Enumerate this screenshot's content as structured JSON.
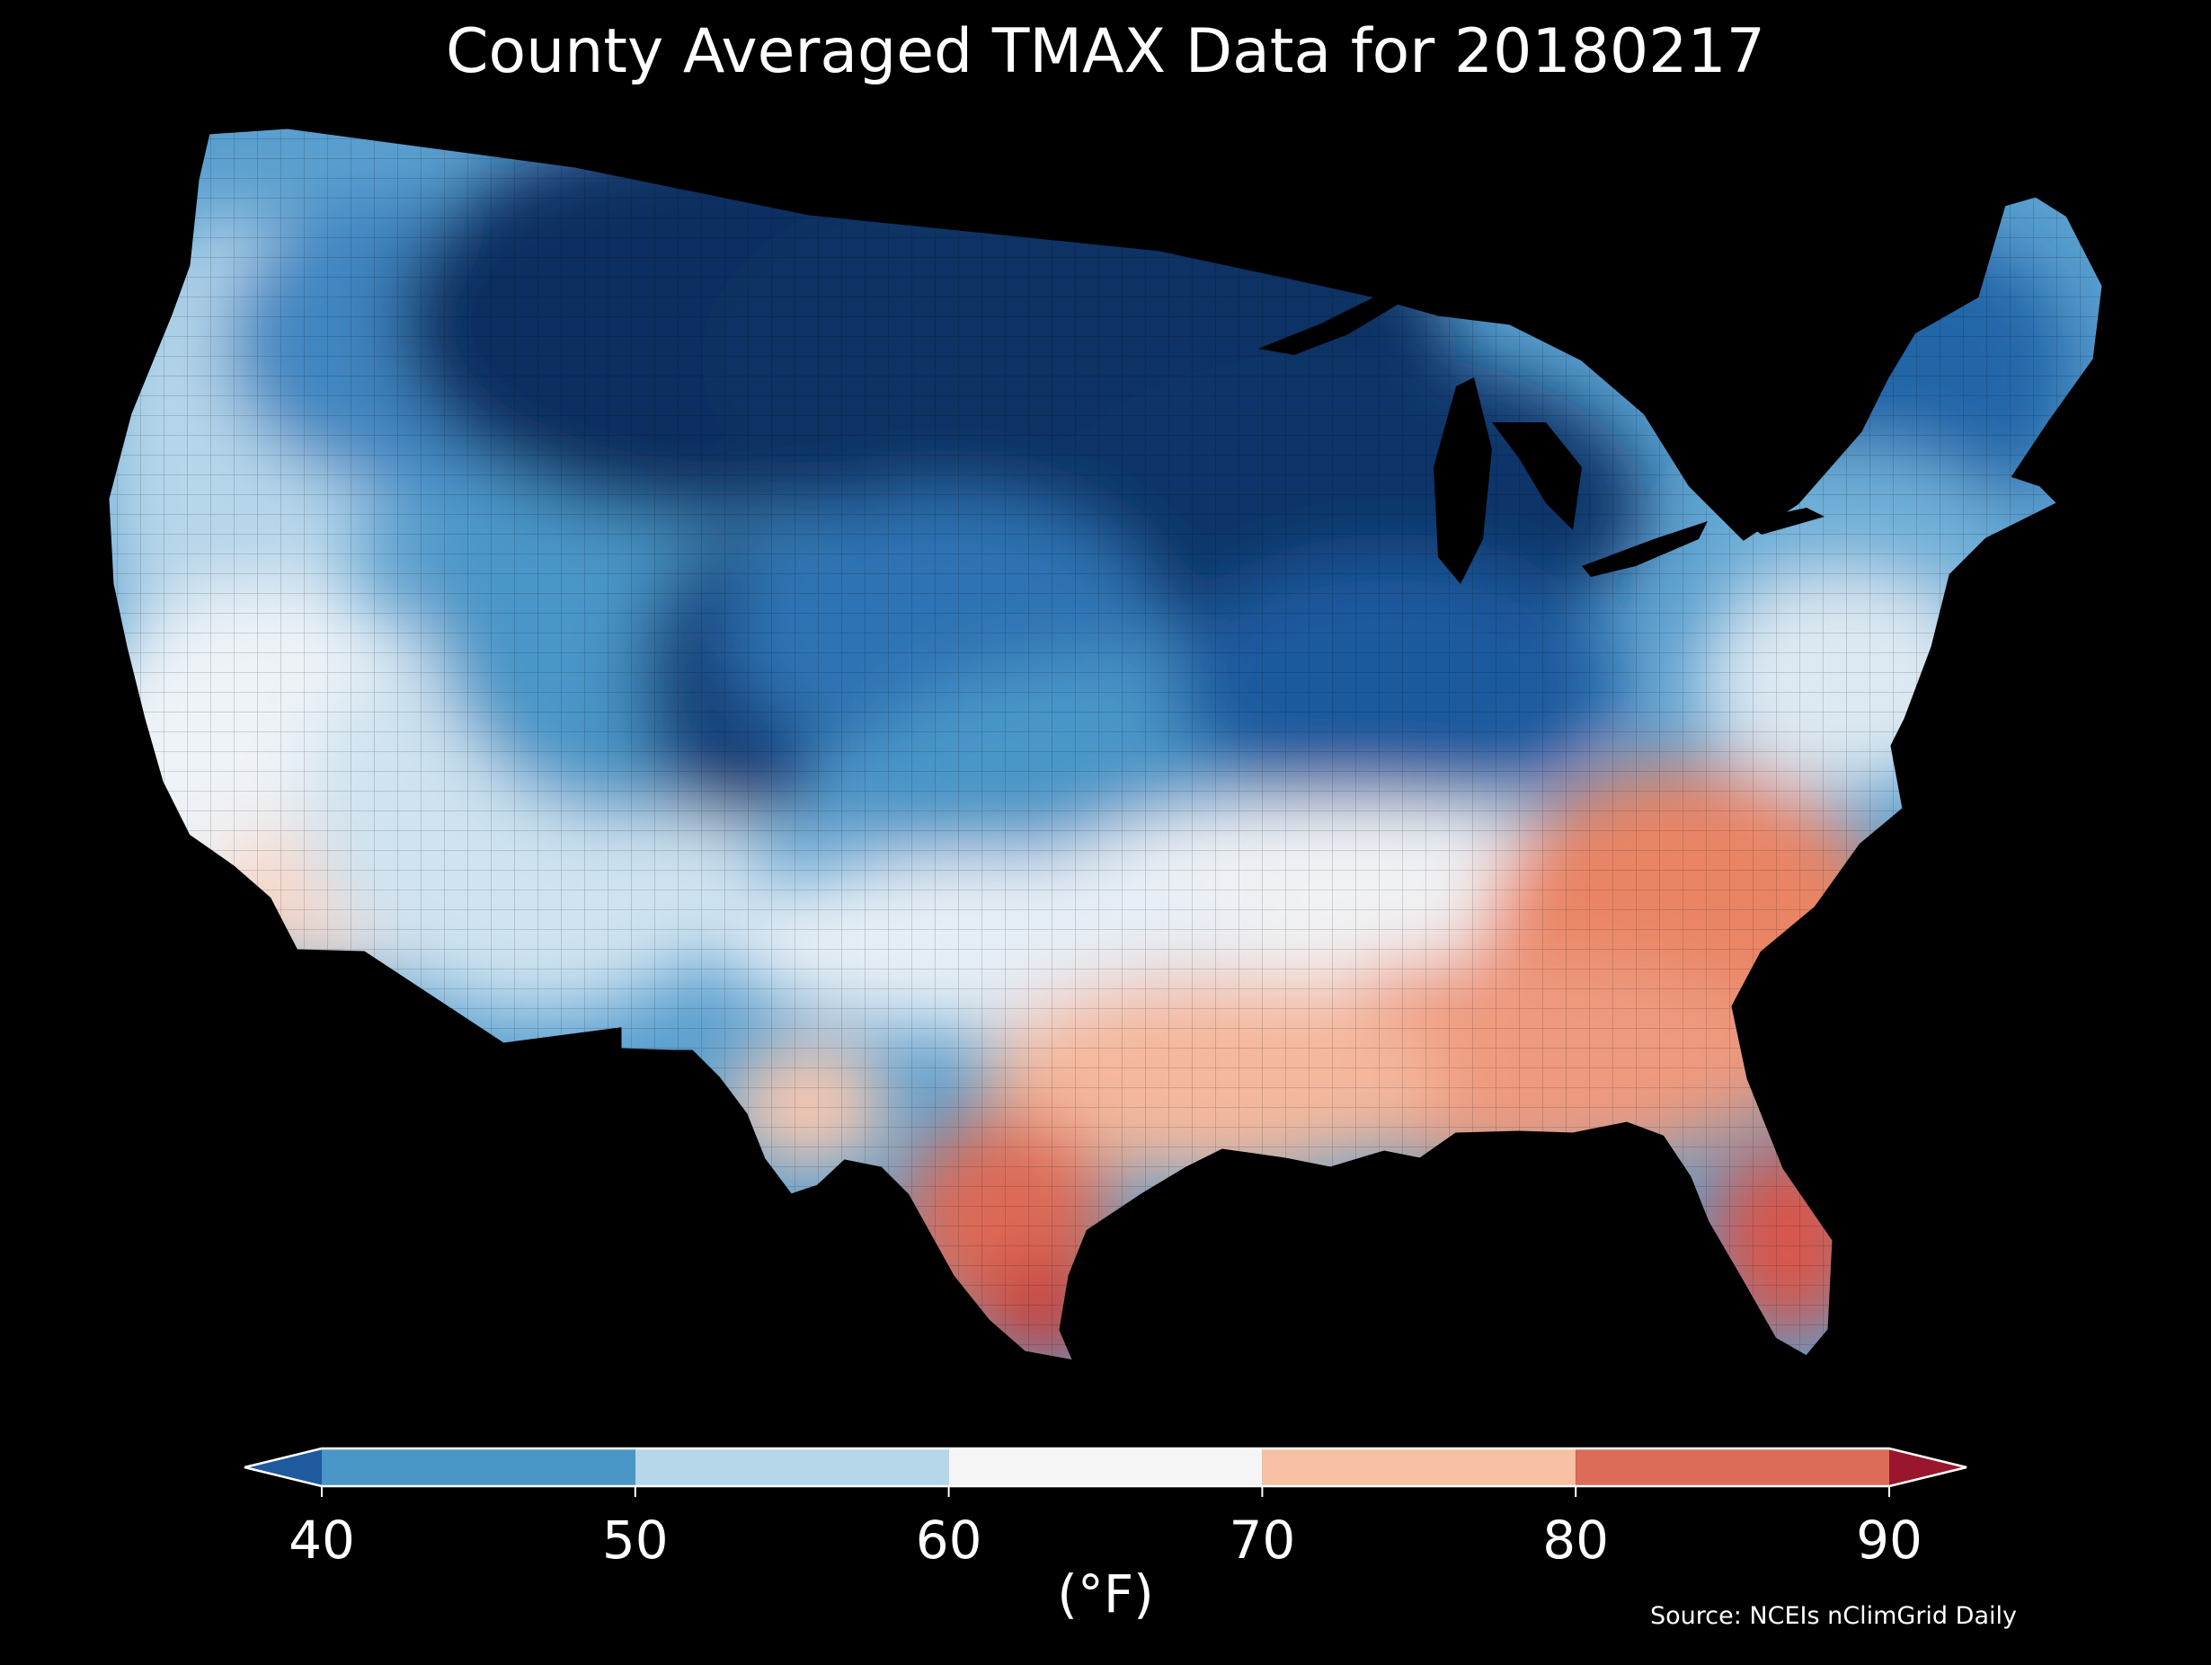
{
  "title": "County Averaged TMAX Data for 20180217",
  "source": "Source: NCEIs nClimGrid Daily",
  "colorbar": {
    "unit_label": "(°F)",
    "ticks": [
      "40",
      "50",
      "60",
      "70",
      "80",
      "90"
    ],
    "bins": [
      {
        "range": "<40",
        "color": "#1f5a9e"
      },
      {
        "range": "40-50",
        "color": "#4a96c7"
      },
      {
        "range": "50-60",
        "color": "#b6d6ea"
      },
      {
        "range": "60-70",
        "color": "#f5f5f5"
      },
      {
        "range": "70-80",
        "color": "#f8c1a3"
      },
      {
        "range": "80-90",
        "color": "#dc6b57"
      },
      {
        "range": ">90",
        "color": "#99162c"
      }
    ]
  },
  "map": {
    "region": "Contiguous United States counties",
    "variable": "TMAX",
    "date": "20180217",
    "pattern": "coldest (below 40°F) over the northern Plains and upper Midwest; 40-60°F across the West and central states; 60-70°F in the mid-Atlantic and lower Mississippi valley; 70-90°F over the Southeast, Gulf Coast, south Texas and Florida"
  }
}
